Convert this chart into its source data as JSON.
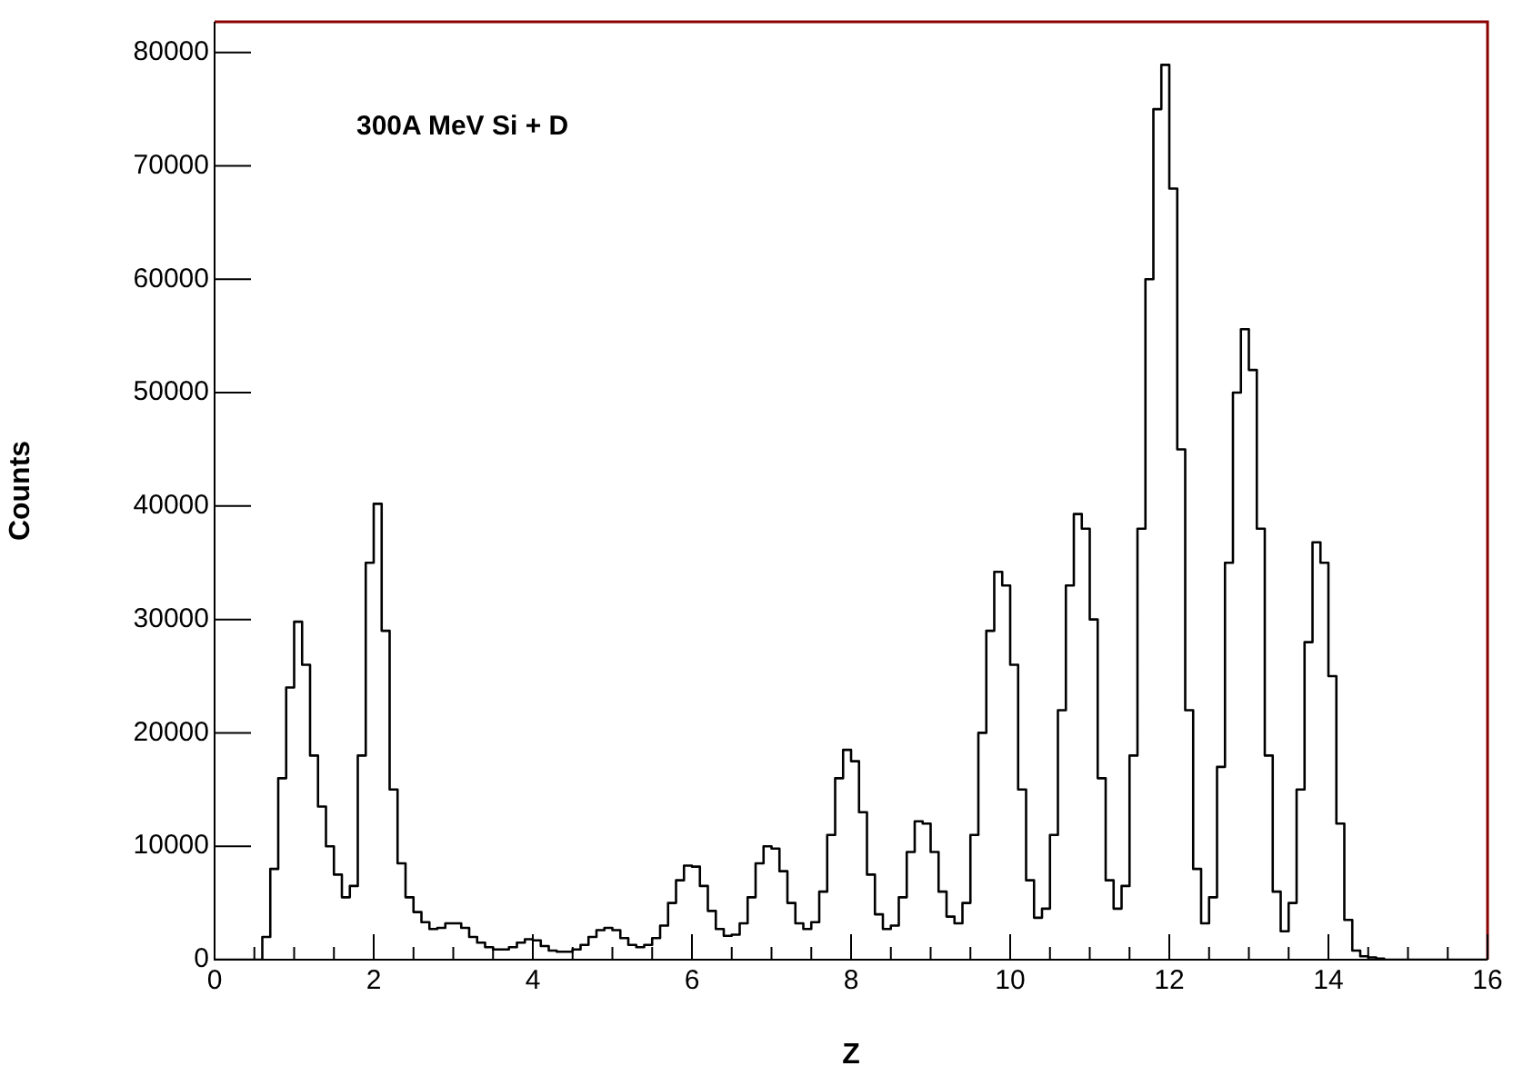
{
  "chart_data": {
    "type": "histogram",
    "title": "300A MeV Si + D",
    "xlabel": "Z",
    "ylabel": "Counts",
    "color": "#000000",
    "bins": [
      0,
      0.1,
      0.2,
      0.3,
      0.4,
      0.5,
      0.6,
      0.7,
      0.8,
      0.9,
      1,
      1.1,
      1.2,
      1.3,
      1.4,
      1.5,
      1.6,
      1.7,
      1.8,
      1.9,
      2,
      2.1,
      2.2,
      2.3,
      2.4,
      2.5,
      2.6,
      2.7,
      2.8,
      2.9,
      3,
      3.1,
      3.2,
      3.3,
      3.4,
      3.5,
      3.6,
      3.7,
      3.8,
      3.9,
      4,
      4.1,
      4.2,
      4.3,
      4.4,
      4.5,
      4.6,
      4.7,
      4.8,
      4.9,
      5,
      5.1,
      5.2,
      5.3,
      5.4,
      5.5,
      5.6,
      5.7,
      5.8,
      5.9,
      6,
      6.1,
      6.2,
      6.3,
      6.4,
      6.5,
      6.6,
      6.7,
      6.8,
      6.9,
      7,
      7.1,
      7.2,
      7.3,
      7.4,
      7.5,
      7.6,
      7.7,
      7.8,
      7.9,
      8,
      8.1,
      8.2,
      8.3,
      8.4,
      8.5,
      8.6,
      8.7,
      8.8,
      8.9,
      9,
      9.1,
      9.2,
      9.3,
      9.4,
      9.5,
      9.6,
      9.7,
      9.8,
      9.9,
      10,
      10.1,
      10.2,
      10.3,
      10.4,
      10.5,
      10.6,
      10.7,
      10.8,
      10.9,
      11,
      11.1,
      11.2,
      11.3,
      11.4,
      11.5,
      11.6,
      11.7,
      11.8,
      11.9,
      12,
      12.1,
      12.2,
      12.3,
      12.4,
      12.5,
      12.6,
      12.7,
      12.8,
      12.9,
      13,
      13.1,
      13.2,
      13.3,
      13.4,
      13.5,
      13.6,
      13.7,
      13.8,
      13.9,
      14,
      14.1,
      14.2,
      14.3,
      14.4,
      14.5,
      14.6,
      14.7,
      14.8,
      14.9,
      15,
      15.1,
      15.2,
      15.3,
      15.4,
      15.5,
      15.6,
      15.7,
      15.8,
      15.9,
      16
    ],
    "values": [
      0,
      0,
      0,
      0,
      0,
      0,
      2000,
      8000,
      16000,
      24000,
      29800,
      26000,
      18000,
      13500,
      10000,
      7500,
      5500,
      6500,
      18000,
      35000,
      40200,
      29000,
      15000,
      8500,
      5500,
      4200,
      3300,
      2700,
      2800,
      3200,
      3200,
      2800,
      2000,
      1500,
      1100,
      900,
      900,
      1100,
      1500,
      1800,
      1700,
      1200,
      800,
      700,
      700,
      900,
      1300,
      2000,
      2600,
      2800,
      2600,
      1900,
      1300,
      1100,
      1300,
      1900,
      3000,
      5000,
      7000,
      8300,
      8200,
      6500,
      4300,
      2700,
      2100,
      2200,
      3200,
      5500,
      8500,
      10000,
      9800,
      7800,
      5000,
      3200,
      2700,
      3300,
      6000,
      11000,
      16000,
      18500,
      17500,
      13000,
      7500,
      4000,
      2700,
      3000,
      5500,
      9500,
      12200,
      12000,
      9500,
      6000,
      3800,
      3200,
      5000,
      11000,
      20000,
      29000,
      34200,
      33000,
      26000,
      15000,
      7000,
      3700,
      4500,
      11000,
      22000,
      33000,
      39300,
      38000,
      30000,
      16000,
      7000,
      4500,
      6500,
      18000,
      38000,
      60000,
      75000,
      78900,
      68000,
      45000,
      22000,
      8000,
      3200,
      5500,
      17000,
      35000,
      50000,
      55600,
      52000,
      38000,
      18000,
      6000,
      2500,
      5000,
      15000,
      28000,
      36800,
      35000,
      25000,
      12000,
      3500,
      800,
      300,
      200,
      100,
      0,
      0,
      0,
      0,
      0,
      0,
      0,
      0,
      0,
      0,
      0,
      0,
      0
    ],
    "xlim": [
      0,
      16
    ],
    "ylim": [
      0,
      82700
    ],
    "xticks": [
      0,
      {
        "value": 0.5,
        "label": null
      },
      2,
      {
        "value": 1.5,
        "label": null
      },
      {
        "value": 1,
        "label": null
      },
      4,
      {
        "value": 2.5,
        "label": null
      },
      {
        "value": 3,
        "label": null
      },
      {
        "value": 3.5,
        "label": null
      },
      {
        "value": 4.5,
        "label": null
      },
      {
        "value": 5,
        "label": null
      },
      {
        "value": 5.5,
        "label": null
      },
      6,
      {
        "value": 6.5,
        "label": null
      },
      {
        "value": 7,
        "label": null
      },
      {
        "value": 7.5,
        "label": null
      },
      8,
      {
        "value": 8.5,
        "label": null
      },
      {
        "value": 9,
        "label": null
      },
      {
        "value": 9.5,
        "label": null
      },
      10,
      {
        "value": 10.5,
        "label": null
      },
      {
        "value": 11,
        "label": null
      },
      {
        "value": 11.5,
        "label": null
      },
      12,
      {
        "value": 12.5,
        "label": null
      },
      {
        "value": 13,
        "label": null
      },
      {
        "value": 13.5,
        "label": null
      },
      14,
      {
        "value": 14.5,
        "label": null
      },
      {
        "value": 15,
        "label": null
      },
      {
        "value": 15.5,
        "label": null
      },
      16
    ],
    "yticks": [
      0,
      10000,
      20000,
      30000,
      40000,
      50000,
      60000,
      70000,
      80000
    ]
  }
}
